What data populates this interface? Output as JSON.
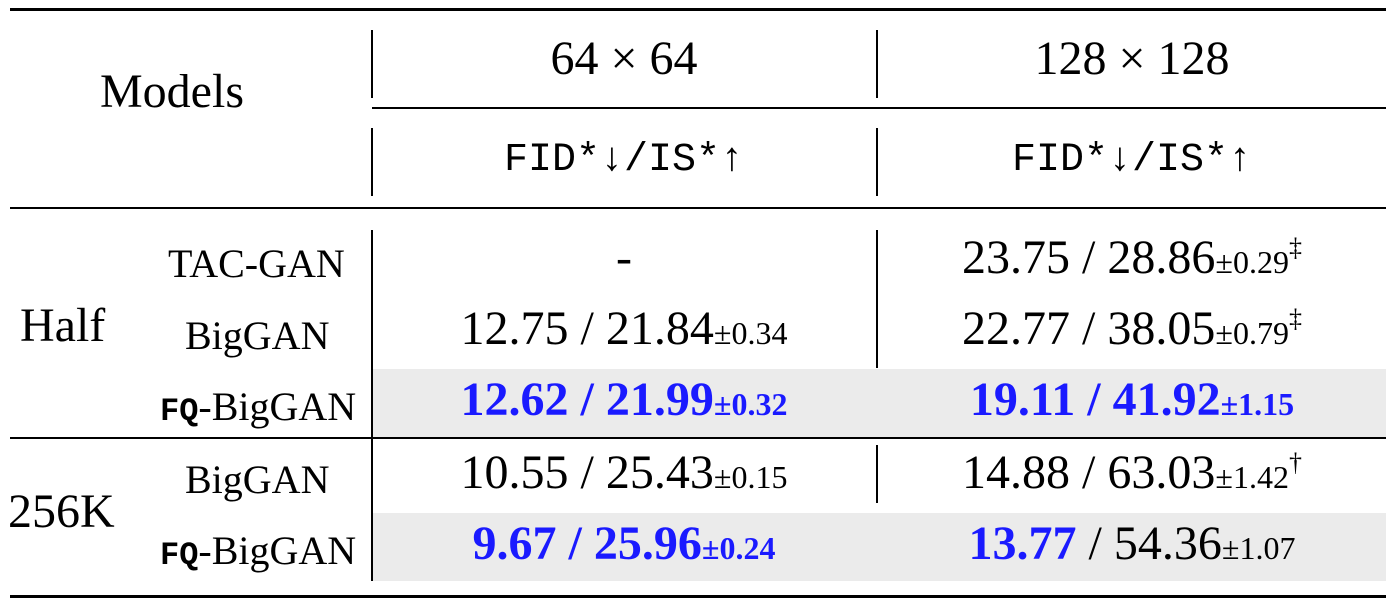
{
  "header": {
    "models": "Models",
    "res_64": "64 × 64",
    "res_128": "128 × 128",
    "metric_64": "FID*↓/IS*↑",
    "metric_128": "FID*↓/IS*↑"
  },
  "groups": [
    {
      "label": "Half",
      "rows": [
        {
          "model": "TAC-GAN",
          "c64": {
            "main": "-",
            "pm": ""
          },
          "c128": {
            "main": "23.75 / 28.86",
            "pm": "±0.29",
            "mark": "‡"
          }
        },
        {
          "model": "BigGAN",
          "c64": {
            "main": "12.75 / 21.84",
            "pm": "±0.34"
          },
          "c128": {
            "main": "22.77 / 38.05",
            "pm": "±0.79",
            "mark": "‡"
          }
        },
        {
          "model_prefix": "FQ",
          "model": "-BigGAN",
          "c64": {
            "main": "12.62 / 21.99",
            "pm": "±0.32"
          },
          "c128": {
            "main": "19.11 / 41.92",
            "pm": "±1.15"
          }
        }
      ]
    },
    {
      "label": "256K",
      "rows": [
        {
          "model": "BigGAN",
          "c64": {
            "main": "10.55 / 25.43",
            "pm": "±0.15"
          },
          "c128": {
            "main": "14.88 / 63.03",
            "pm": "±1.42",
            "mark": "†"
          }
        },
        {
          "model_prefix": "FQ",
          "model": "-BigGAN",
          "c64": {
            "main": "9.67 / 25.96",
            "pm": "±0.24"
          },
          "c128": {
            "main_bold": "13.77",
            "main_rest": " / 54.36",
            "pm": "±1.07"
          }
        }
      ]
    }
  ],
  "colors": {
    "highlight_text": "#1a1aff",
    "row_shade": "#ebebeb"
  }
}
